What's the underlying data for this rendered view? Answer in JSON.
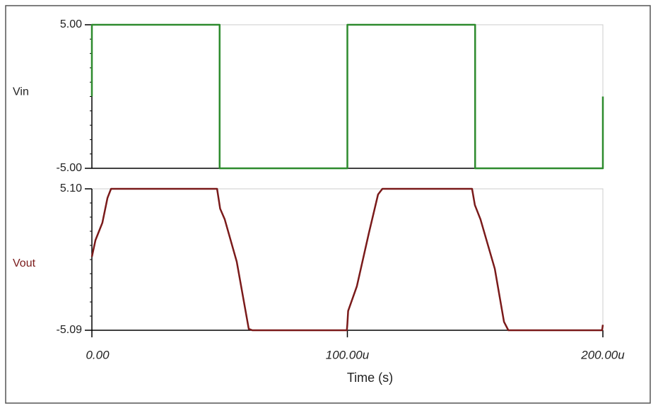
{
  "chart_data": [
    {
      "type": "line",
      "ylabel": "Vin",
      "color": "#2e8b2e",
      "x": [
        0,
        0,
        5e-05,
        5e-05,
        0.0001,
        0.0001,
        0.00015,
        0.00015,
        0.0002,
        0.0002
      ],
      "values": [
        0,
        5,
        5,
        -5,
        -5,
        5,
        5,
        -5,
        -5,
        0
      ],
      "xlim": [
        0,
        0.0002
      ],
      "ylim": [
        -5,
        5
      ],
      "yticks": [
        {
          "value": -5,
          "label": "-5.00"
        },
        {
          "value": 5,
          "label": "5.00"
        }
      ]
    },
    {
      "type": "line",
      "ylabel": "Vout",
      "xlabel": "Time (s)",
      "color": "#7a1a1a",
      "x": [
        0,
        1.4e-06,
        4.1e-06,
        6.1e-06,
        7.5e-06,
        4.9e-05,
        5.02e-05,
        5.2e-05,
        5.67e-05,
        6.14e-05,
        6.28e-05,
        9.98e-05,
        0.0001,
        0.0001003,
        0.0001037,
        0.0001084,
        0.000112,
        0.0001137,
        0.0001488,
        0.0001499,
        0.0001521,
        0.0001577,
        0.0001613,
        0.000163,
        0.0001997,
        0.0002
      ],
      "values": [
        0.2,
        1.4,
        2.65,
        4.44,
        5.1,
        5.1,
        3.67,
        2.9,
        -0.15,
        -4.99,
        -5.09,
        -5.09,
        -4.63,
        -3.7,
        -1.93,
        1.9,
        4.69,
        5.1,
        5.1,
        3.93,
        2.9,
        -0.66,
        -4.48,
        -5.09,
        -5.09,
        -4.7
      ],
      "xlim": [
        0,
        0.0002
      ],
      "ylim": [
        -5.09,
        5.1
      ],
      "xticks": [
        {
          "value": 0,
          "label": "0.00"
        },
        {
          "value": 0.0001,
          "label": "100.00u"
        },
        {
          "value": 0.0002,
          "label": "200.00u"
        }
      ],
      "yticks": [
        {
          "value": -5.09,
          "label": "-5.09"
        },
        {
          "value": 5.1,
          "label": "5.10"
        }
      ]
    }
  ]
}
